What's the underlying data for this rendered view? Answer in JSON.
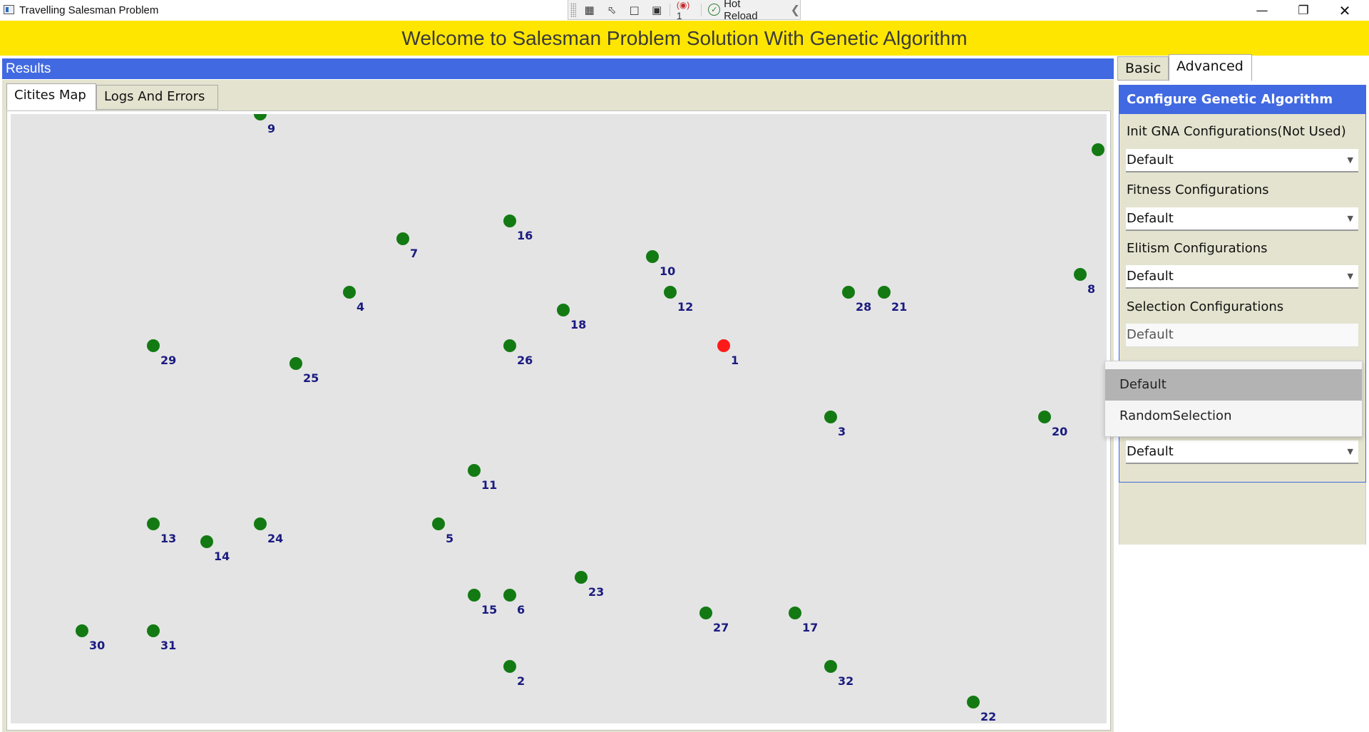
{
  "window": {
    "title": "Travelling Salesman Problem",
    "devtools": {
      "counter": "1",
      "hot_reload_label": "Hot Reload"
    }
  },
  "header": {
    "title": "Welcome to Salesman Problem Solution With Genetic Algorithm"
  },
  "results": {
    "title": "Results",
    "tabs": [
      {
        "label": "Citites Map",
        "active": true
      },
      {
        "label": "Logs And Errors",
        "active": false
      }
    ]
  },
  "map": {
    "colors": {
      "city": "#137a13",
      "start_city": "#ff1a1a"
    },
    "start_city": "1",
    "cities": [
      "9",
      "16",
      "7",
      "10",
      "4",
      "12",
      "18",
      "28",
      "21",
      "8",
      "29",
      "25",
      "26",
      "1",
      "3",
      "20",
      "11",
      "13",
      "14",
      "24",
      "5",
      "23",
      "15",
      "6",
      "27",
      "17",
      "30",
      "31",
      "2",
      "32",
      "22",
      ""
    ]
  },
  "right_panel": {
    "tabs": [
      {
        "label": "Basic",
        "active": false
      },
      {
        "label": "Advanced",
        "active": true
      }
    ],
    "config": {
      "title": "Configure Genetic Algorithm",
      "fields": [
        {
          "label": "Init GNA Configurations(Not Used)",
          "value": "Default"
        },
        {
          "label": "Fitness Configurations",
          "value": "Default"
        },
        {
          "label": "Elitism Configurations",
          "value": "Default"
        },
        {
          "label": "Selection Configurations",
          "value": "Default"
        },
        {
          "label": "",
          "value": "Default"
        }
      ],
      "dropdown_options": [
        "Default",
        "RandomSelection"
      ],
      "dropdown_selected": "Default"
    }
  }
}
